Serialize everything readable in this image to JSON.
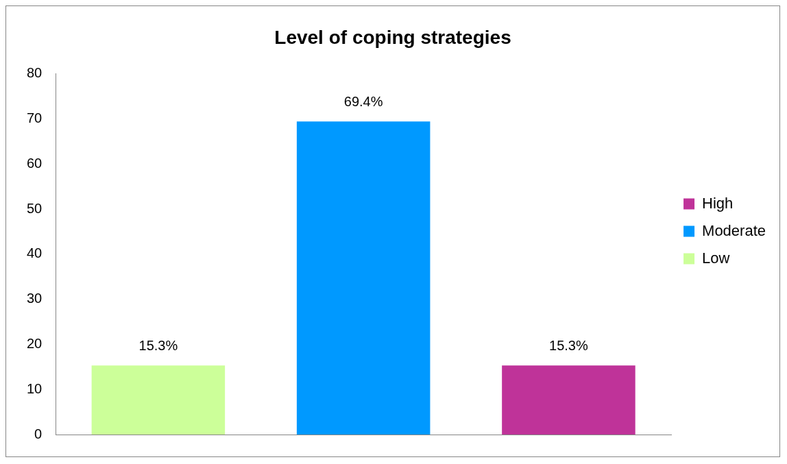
{
  "chart_data": {
    "type": "bar",
    "title": "Level of coping strategies",
    "categories": [
      null,
      null,
      null
    ],
    "series": [
      {
        "name": "Low",
        "color": "#ccff99",
        "values": [
          15.3,
          null,
          null
        ],
        "value_labels": [
          "15.3%",
          null,
          null
        ]
      },
      {
        "name": "Moderate",
        "color": "#0099ff",
        "values": [
          null,
          69.4,
          null
        ],
        "value_labels": [
          null,
          "69.4%",
          null
        ]
      },
      {
        "name": "High",
        "color": "#bf3399",
        "values": [
          null,
          null,
          15.3
        ],
        "value_labels": [
          null,
          null,
          "15.3%"
        ]
      }
    ],
    "ylim": [
      0,
      80
    ],
    "yticks": [
      0,
      10,
      20,
      30,
      40,
      50,
      60,
      70,
      80
    ],
    "grid": false,
    "legend": "right",
    "tick_labels": "y"
  }
}
